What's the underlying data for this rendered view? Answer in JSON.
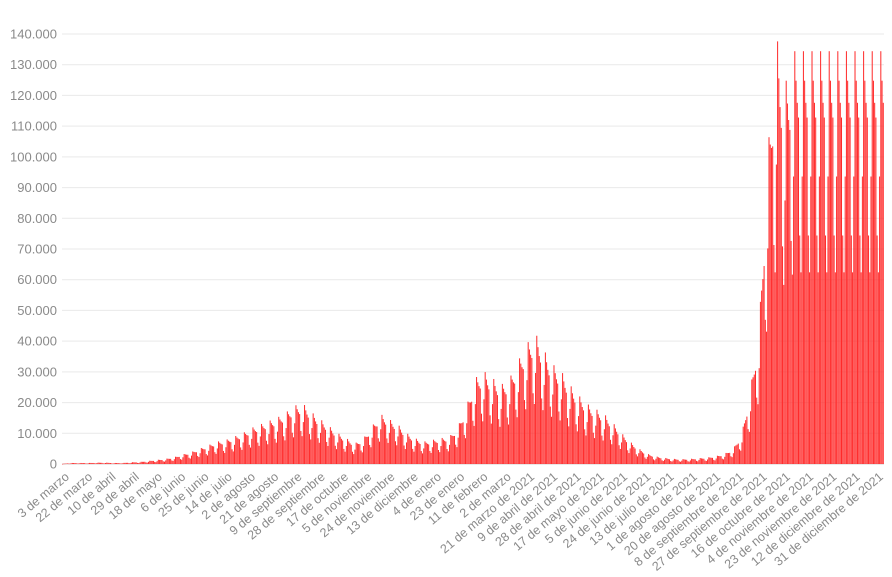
{
  "chart_data": {
    "type": "bar",
    "title": "",
    "xlabel": "",
    "ylabel": "",
    "ylim": [
      0,
      140000
    ],
    "grid": true,
    "legend": "none",
    "bar_color": "#ff2a2a",
    "y_ticks": [
      {
        "value": 0,
        "label": "0"
      },
      {
        "value": 10000,
        "label": "10.000"
      },
      {
        "value": 20000,
        "label": "20.000"
      },
      {
        "value": 30000,
        "label": "30.000"
      },
      {
        "value": 40000,
        "label": "40.000"
      },
      {
        "value": 50000,
        "label": "50.000"
      },
      {
        "value": 60000,
        "label": "60.000"
      },
      {
        "value": 70000,
        "label": "70.000"
      },
      {
        "value": 80000,
        "label": "80.000"
      },
      {
        "value": 90000,
        "label": "90.000"
      },
      {
        "value": 100000,
        "label": "100.000"
      },
      {
        "value": 110000,
        "label": "110.000"
      },
      {
        "value": 120000,
        "label": "120.000"
      },
      {
        "value": 130000,
        "label": "130.000"
      },
      {
        "value": 140000,
        "label": "140.000"
      }
    ],
    "x_tick_labels": [
      "3 de marzo",
      "22 de marzo",
      "10 de abril",
      "29 de abril",
      "18 de mayo",
      "6 de junio",
      "25 de junio",
      "14 de julio",
      "2 de agosto",
      "21 de agosto",
      "9 de septiembre",
      "28 de septiembre",
      "17 de octubre",
      "5 de noviembre",
      "24 de noviembre",
      "13 de diciembre",
      "4 de enero",
      "23 de enero",
      "11 de febrero",
      "2 de marzo",
      "21 de marzo de 2021",
      "9 de abril de 2021",
      "28 de abril de 2021",
      "17 de mayo de 2021",
      "5 de junio de 2021",
      "24 de junio de 2021",
      "13 de julio de 2021",
      "1 de agosto de 2021",
      "20 de agosto de 2021",
      "8 de septiembre de 2021",
      "27 de septiembre de 2021",
      "16 de octubre de 2021",
      "4 de noviembre de 2021",
      "23 de noviembre de 2021",
      "12 de diciembre de 2021",
      "31 de diciembre de 2021"
    ],
    "series": [
      {
        "x_start": "2020-03-03",
        "x_end": "2021-12-31",
        "daily_values_by_week": [
          50,
          300,
          300,
          300,
          400,
          400,
          300,
          300,
          500,
          600,
          900,
          1200,
          1500,
          2000,
          2800,
          3500,
          4500,
          5500,
          6500,
          7000,
          8000,
          9000,
          10500,
          11500,
          12500,
          13500,
          15000,
          17000,
          17500,
          15000,
          13000,
          11000,
          9000,
          7500,
          6000,
          7500,
          11000,
          14500,
          13000,
          11500,
          9000,
          7500,
          6500,
          7000,
          7500,
          8000,
          11000,
          17000,
          25000,
          27000,
          25000,
          23000,
          25000,
          30000,
          35000,
          38000,
          33000,
          29000,
          27000,
          23000,
          20000,
          17500,
          16000,
          14500,
          12000,
          9000,
          6500,
          4500,
          3000,
          2200,
          1800,
          1500,
          1400,
          1500,
          1700,
          1900,
          2300,
          3000,
          4500,
          9000,
          22000,
          40000,
          90000,
          125000,
          110000,
          120000
        ]
      }
    ]
  }
}
